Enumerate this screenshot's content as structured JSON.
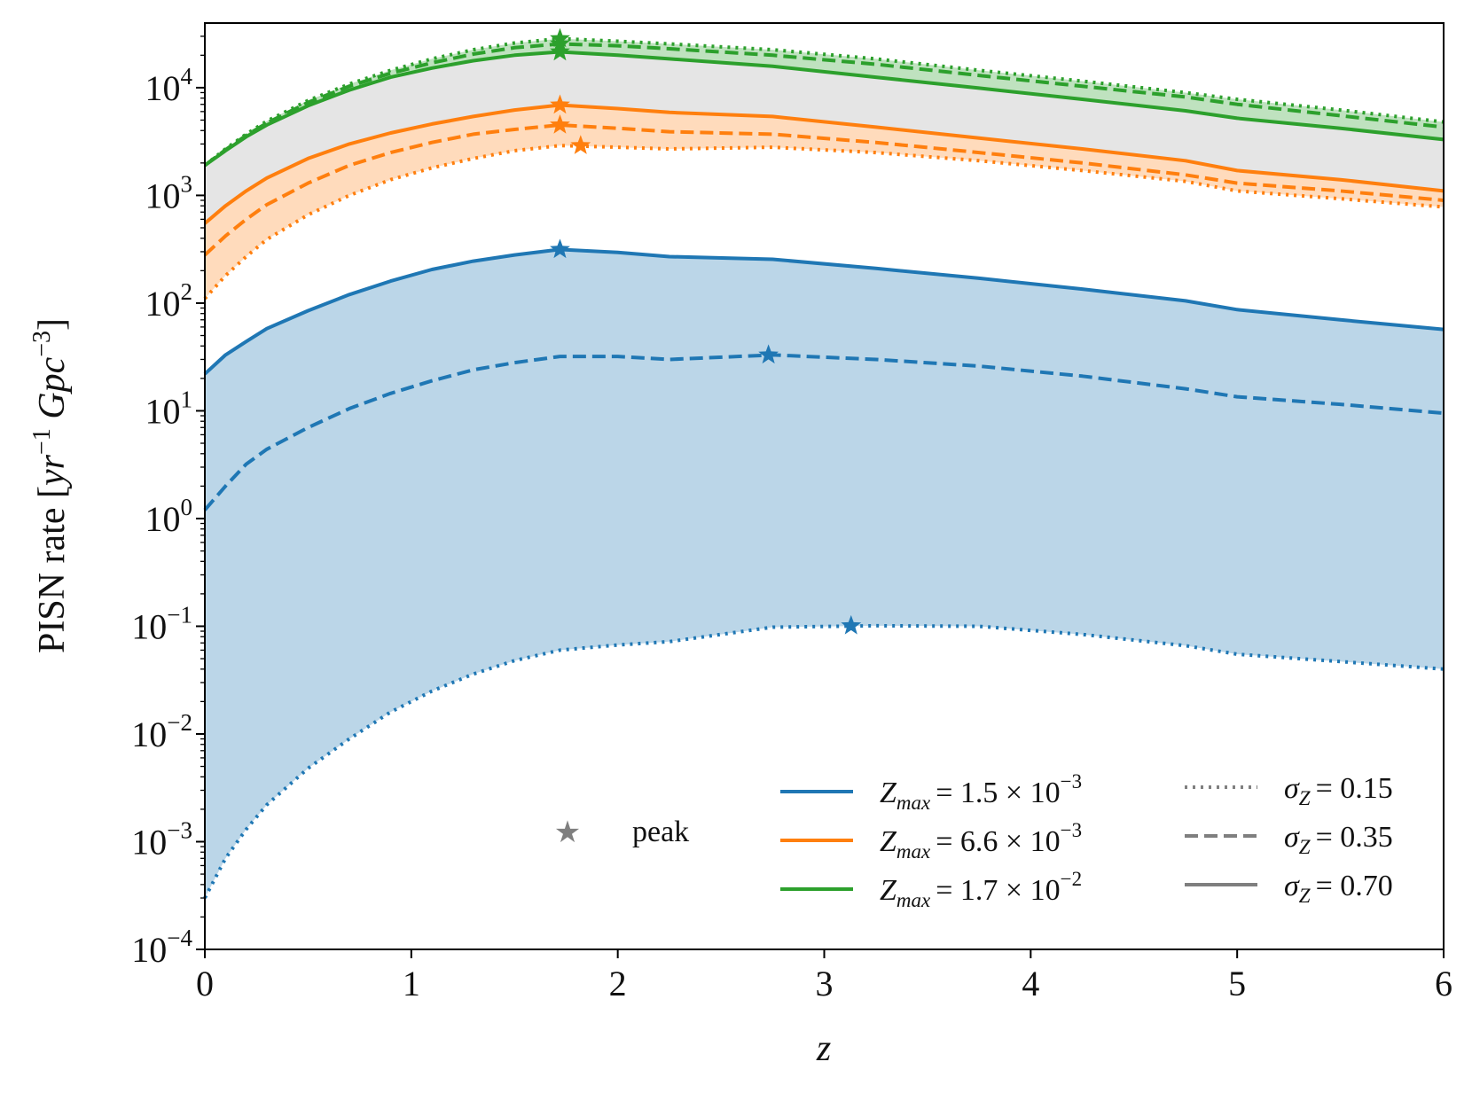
{
  "chart_data": {
    "type": "line",
    "title": "",
    "xlabel": "z",
    "ylabel": "PISN rate [yr^-1 Gpc^-3]",
    "ylabel_parts": {
      "prefix": "PISN rate [",
      "yr": "yr",
      "exp1": "−1",
      "gpc": "Gpc",
      "exp2": "−3",
      "suffix": "]"
    },
    "xlim": [
      0,
      6
    ],
    "ylim_log10": [
      -4,
      4.6
    ],
    "yscale": "log",
    "x_ticks": [
      "0",
      "1",
      "2",
      "3",
      "4",
      "5",
      "6"
    ],
    "y_ticks": [
      {
        "base": "10",
        "exp": "−4"
      },
      {
        "base": "10",
        "exp": "−3"
      },
      {
        "base": "10",
        "exp": "−2"
      },
      {
        "base": "10",
        "exp": "−1"
      },
      {
        "base": "10",
        "exp": "0"
      },
      {
        "base": "10",
        "exp": "1"
      },
      {
        "base": "10",
        "exp": "2"
      },
      {
        "base": "10",
        "exp": "3"
      },
      {
        "base": "10",
        "exp": "4"
      }
    ],
    "x": [
      0,
      0.1,
      0.2,
      0.3,
      0.5,
      0.7,
      0.9,
      1.1,
      1.3,
      1.5,
      1.72,
      2.0,
      2.25,
      2.75,
      3.25,
      3.75,
      4.25,
      4.75,
      5.0,
      5.5,
      6.0
    ],
    "colors": {
      "blue": "#1f77b4",
      "orange": "#ff7f0e",
      "green": "#2ca02c",
      "gray": "#7f7f7f",
      "band_gray": "#e5e5e5"
    },
    "series": [
      {
        "name": "Zmax=1.5e-3, σZ=0.15",
        "color": "blue",
        "style": "dotted",
        "values": [
          0.0003,
          0.0007,
          0.0013,
          0.0022,
          0.0048,
          0.009,
          0.016,
          0.025,
          0.036,
          0.048,
          0.06,
          0.067,
          0.072,
          0.098,
          0.101,
          0.1,
          0.084,
          0.066,
          0.055,
          0.047,
          0.04
        ],
        "peak": {
          "x": 3.13,
          "y": 0.101
        }
      },
      {
        "name": "Zmax=1.5e-3, σZ=0.35",
        "color": "blue",
        "style": "dashed",
        "values": [
          1.2,
          2.0,
          3.2,
          4.4,
          7.0,
          10.5,
          14.5,
          19.0,
          24.0,
          28.0,
          32.0,
          32.0,
          30.0,
          33.0,
          30.0,
          26.0,
          21.0,
          16.0,
          13.5,
          11.5,
          9.5
        ],
        "peak": {
          "x": 2.73,
          "y": 33.0
        }
      },
      {
        "name": "Zmax=1.5e-3, σZ=0.70",
        "color": "blue",
        "style": "solid",
        "values": [
          22,
          33,
          44,
          58,
          85,
          120,
          160,
          205,
          245,
          280,
          315,
          295,
          270,
          255,
          210,
          170,
          135,
          105,
          87,
          70,
          57
        ],
        "peak": {
          "x": 1.72,
          "y": 315
        }
      },
      {
        "name": "Zmax=6.6e-3, σZ=0.15",
        "color": "orange",
        "style": "dotted",
        "values": [
          110,
          180,
          270,
          390,
          660,
          1000,
          1400,
          1800,
          2200,
          2600,
          2900,
          2800,
          2700,
          2800,
          2500,
          2100,
          1700,
          1350,
          1100,
          930,
          780
        ],
        "peak": {
          "x": 1.82,
          "y": 2900
        }
      },
      {
        "name": "Zmax=6.6e-3, σZ=0.35",
        "color": "orange",
        "style": "dashed",
        "values": [
          280,
          420,
          600,
          820,
          1300,
          1900,
          2500,
          3100,
          3700,
          4100,
          4500,
          4200,
          3900,
          3700,
          3100,
          2500,
          2000,
          1550,
          1300,
          1100,
          900
        ],
        "peak": {
          "x": 1.72,
          "y": 4500
        }
      },
      {
        "name": "Zmax=6.6e-3, σZ=0.70",
        "color": "orange",
        "style": "solid",
        "values": [
          550,
          800,
          1100,
          1450,
          2200,
          3000,
          3800,
          4600,
          5400,
          6200,
          6900,
          6400,
          5900,
          5400,
          4300,
          3400,
          2700,
          2100,
          1700,
          1400,
          1100
        ],
        "peak": {
          "x": 1.72,
          "y": 6900
        }
      },
      {
        "name": "Zmax=1.7e-2, σZ=0.15",
        "color": "green",
        "style": "dotted",
        "values": [
          1900,
          2700,
          3700,
          4900,
          7600,
          10800,
          14500,
          18500,
          22500,
          26000,
          28500,
          27000,
          25500,
          22500,
          18500,
          14500,
          11500,
          9000,
          7800,
          6200,
          4800
        ],
        "peak": {
          "x": 1.72,
          "y": 28500
        }
      },
      {
        "name": "Zmax=1.7e-2, σZ=0.35",
        "color": "green",
        "style": "dashed",
        "values": [
          1900,
          2650,
          3600,
          4700,
          7300,
          10300,
          13600,
          17000,
          20500,
          23500,
          25500,
          24500,
          23000,
          20000,
          16500,
          13000,
          10300,
          8200,
          7000,
          5500,
          4300
        ],
        "peak": {
          "x": 1.72,
          "y": 25500
        }
      },
      {
        "name": "Zmax=1.7e-2, σZ=0.70",
        "color": "green",
        "style": "solid",
        "values": [
          1900,
          2600,
          3500,
          4500,
          6800,
          9500,
          12500,
          15200,
          17800,
          20000,
          21500,
          20000,
          18500,
          15800,
          12500,
          9900,
          7800,
          6100,
          5200,
          4200,
          3300
        ],
        "peak": {
          "x": 1.72,
          "y": 21500
        }
      }
    ],
    "legend": {
      "peak": "peak",
      "colors": [
        {
          "color": "blue",
          "sym": "Z",
          "sub": "max",
          "coef": "= 1.5 × 10",
          "exp": "−3"
        },
        {
          "color": "orange",
          "sym": "Z",
          "sub": "max",
          "coef": "= 6.6 × 10",
          "exp": "−3"
        },
        {
          "color": "green",
          "sym": "Z",
          "sub": "max",
          "coef": "= 1.7 × 10",
          "exp": "−2"
        }
      ],
      "styles": [
        {
          "style": "dotted",
          "sym": "σ",
          "sub": "Z",
          "val": "= 0.15"
        },
        {
          "style": "dashed",
          "sym": "σ",
          "sub": "Z",
          "val": "= 0.35"
        },
        {
          "style": "solid",
          "sym": "σ",
          "sub": "Z",
          "val": "= 0.70"
        }
      ]
    }
  }
}
